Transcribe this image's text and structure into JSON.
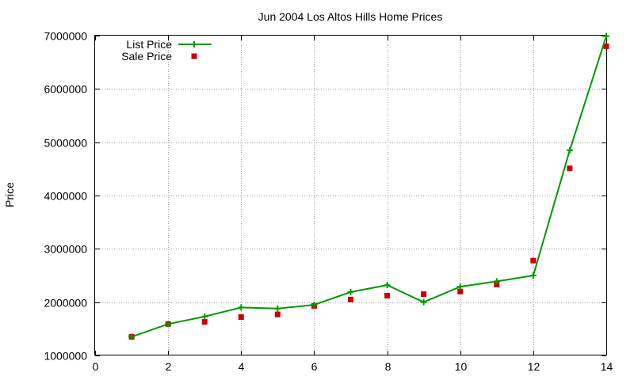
{
  "chart_data": {
    "type": "line",
    "title": "Jun 2004 Los Altos Hills Home Prices",
    "xlabel": "",
    "ylabel": "Price",
    "xlim": [
      0,
      14
    ],
    "ylim": [
      1000000,
      7000000
    ],
    "x_ticks": [
      "0",
      "2",
      "4",
      "6",
      "8",
      "10",
      "12",
      "14"
    ],
    "y_ticks": [
      "1000000",
      "2000000",
      "3000000",
      "4000000",
      "5000000",
      "6000000",
      "7000000"
    ],
    "grid": true,
    "legend_position": "top-left",
    "series": [
      {
        "name": "List Price",
        "style": "lines+points",
        "marker": "plus",
        "color": "#009900",
        "x": [
          1,
          2,
          3,
          4,
          5,
          6,
          7,
          8,
          9,
          10,
          11,
          12,
          13,
          14
        ],
        "y": [
          1350000,
          1590000,
          1730000,
          1900000,
          1880000,
          1950000,
          2190000,
          2320000,
          2000000,
          2290000,
          2390000,
          2500000,
          4850000,
          6990000
        ]
      },
      {
        "name": "Sale Price",
        "style": "points",
        "marker": "square",
        "color": "#cc0000",
        "x": [
          1,
          2,
          3,
          4,
          5,
          6,
          7,
          8,
          9,
          10,
          11,
          12,
          13,
          14
        ],
        "y": [
          1350000,
          1590000,
          1630000,
          1720000,
          1770000,
          1930000,
          2050000,
          2120000,
          2150000,
          2200000,
          2330000,
          2780000,
          4510000,
          6800000
        ]
      }
    ]
  }
}
